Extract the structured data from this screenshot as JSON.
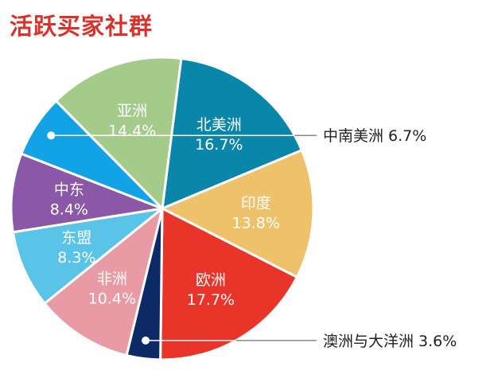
{
  "chart_data": {
    "type": "pie",
    "title": "活跃买家社群",
    "slices": [
      {
        "name": "北美洲",
        "value": 16.7,
        "label": "16.7%",
        "color": "#0a86a9"
      },
      {
        "name": "印度",
        "value": 13.8,
        "label": "13.8%",
        "color": "#eec16b"
      },
      {
        "name": "欧洲",
        "value": 17.7,
        "label": "17.7%",
        "color": "#e83429"
      },
      {
        "name": "澳洲与大洋洲",
        "value": 3.6,
        "label": "3.6%",
        "color": "#0c2a66",
        "callout": true
      },
      {
        "name": "非洲",
        "value": 10.4,
        "label": "10.4%",
        "color": "#e99ba5"
      },
      {
        "name": "东盟",
        "value": 8.3,
        "label": "8.3%",
        "color": "#5ac4e8"
      },
      {
        "name": "中东",
        "value": 8.4,
        "label": "8.4%",
        "color": "#8a58a6"
      },
      {
        "name": "中南美洲",
        "value": 6.7,
        "label": "6.7%",
        "color": "#11a3e6",
        "callout": true
      },
      {
        "name": "亚洲",
        "value": 14.4,
        "label": "14.4%",
        "color": "#a5cb8a"
      }
    ]
  }
}
